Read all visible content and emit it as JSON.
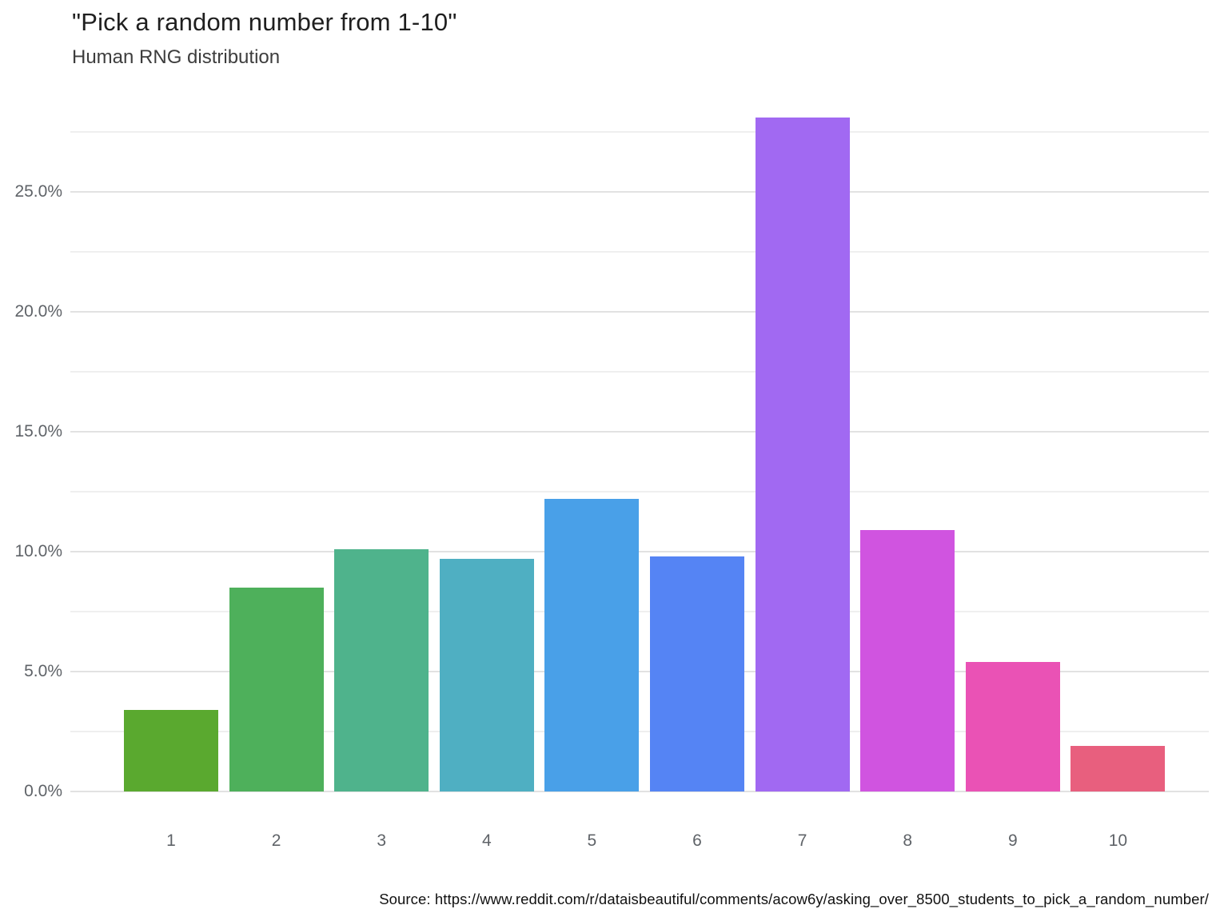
{
  "header": {
    "title": "\"Pick a random number from 1-10\"",
    "subtitle": "Human RNG distribution"
  },
  "chart_data": {
    "type": "bar",
    "title": "\"Pick a random number from 1-10\"",
    "subtitle": "Human RNG distribution",
    "categories": [
      "1",
      "2",
      "3",
      "4",
      "5",
      "6",
      "7",
      "8",
      "9",
      "10"
    ],
    "values": [
      3.4,
      8.5,
      10.1,
      9.7,
      12.2,
      9.8,
      28.1,
      10.9,
      5.4,
      1.9
    ],
    "unit": "%",
    "bar_colors": [
      "#5aa92f",
      "#4eb05b",
      "#4fb38c",
      "#4fafc2",
      "#49a0e8",
      "#5584f4",
      "#a169f2",
      "#d054e0",
      "#ea52b5",
      "#e85f7e"
    ],
    "ylabel": "",
    "xlabel": "",
    "ylim": [
      0,
      29.17
    ],
    "ytick_labels": [
      "0.0%",
      "5.0%",
      "10.0%",
      "15.0%",
      "20.0%",
      "25.0%"
    ],
    "ytick_values": [
      0,
      5,
      10,
      15,
      20,
      25
    ],
    "minor_grid_step": 2.5,
    "grid": "horizontal",
    "legend": "none",
    "gridline_major_color": "#e2e2e2",
    "gridline_minor_color": "#efefef"
  },
  "footer": {
    "source": "Source: https://www.reddit.com/r/dataisbeautiful/comments/acow6y/asking_over_8500_students_to_pick_a_random_number/"
  }
}
